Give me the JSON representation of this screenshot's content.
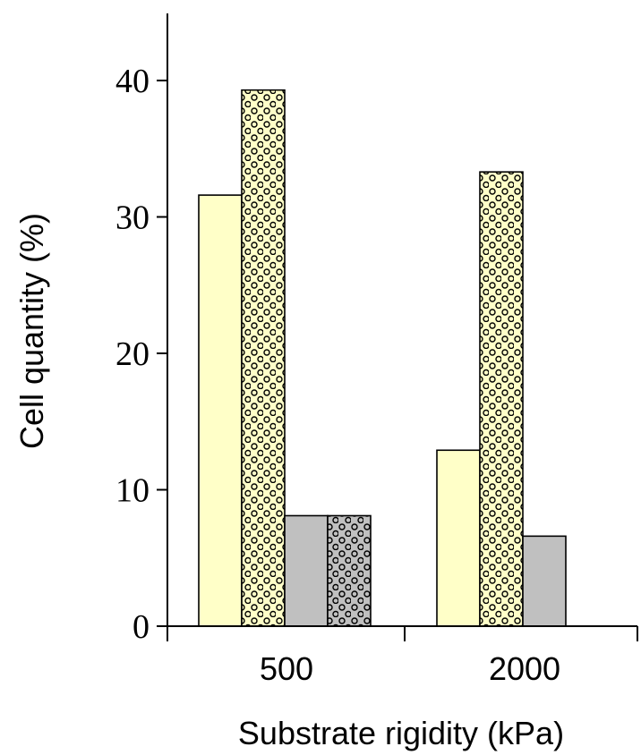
{
  "chart_data": {
    "type": "bar",
    "title": "",
    "xlabel": "Substrate rigidity (kPa)",
    "ylabel": "Cell quantity (%)",
    "categories": [
      "500",
      "2000"
    ],
    "ylim": [
      0,
      45
    ],
    "yticks": [
      0,
      10,
      20,
      30,
      40
    ],
    "grid": false,
    "legend": "none",
    "series": [
      {
        "values": [
          31.6,
          12.9
        ],
        "fill": "#ffffc8",
        "pattern": "none"
      },
      {
        "values": [
          39.3,
          33.3
        ],
        "fill": "#ffffc8",
        "pattern": "circles"
      },
      {
        "values": [
          8.1,
          6.6
        ],
        "fill": "#c0c0c0",
        "pattern": "none"
      },
      {
        "values": [
          8.1,
          null
        ],
        "fill": "#c0c0c0",
        "pattern": "circles"
      }
    ]
  }
}
